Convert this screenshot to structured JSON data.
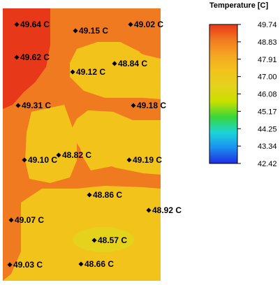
{
  "chart_data": {
    "type": "heatmap",
    "title": "",
    "legend": {
      "title": "Temperature [C]",
      "ticks": [
        "49.74",
        "48.83",
        "47.91",
        "47.00",
        "46.08",
        "45.17",
        "44.25",
        "43.34",
        "42.42"
      ],
      "min": 42.42,
      "max": 49.74,
      "colors": [
        "#e8381a",
        "#f07a1f",
        "#f5a623",
        "#f2c31b",
        "#e4d21d",
        "#c8e000",
        "#39d63b",
        "#1ad5d8",
        "#1a8ef0",
        "#1f2de0"
      ]
    },
    "points": [
      {
        "label": "49.64 C",
        "value": 49.64
      },
      {
        "label": "49.15 C",
        "value": 49.15
      },
      {
        "label": "49.02 C",
        "value": 49.02
      },
      {
        "label": "49.62 C",
        "value": 49.62
      },
      {
        "label": "48.84 C",
        "value": 48.84
      },
      {
        "label": "49.12 C",
        "value": 49.12
      },
      {
        "label": "49.31 C",
        "value": 49.31
      },
      {
        "label": "49.18 C",
        "value": 49.18
      },
      {
        "label": "49.10 C",
        "value": 49.1
      },
      {
        "label": "48.82 C",
        "value": 48.82
      },
      {
        "label": "49.19 C",
        "value": 49.19
      },
      {
        "label": "48.86 C",
        "value": 48.86
      },
      {
        "label": "48.92 C",
        "value": 48.92
      },
      {
        "label": "49.07 C",
        "value": 49.07
      },
      {
        "label": "48.57 C",
        "value": 48.57
      },
      {
        "label": "49.03 C",
        "value": 49.03
      },
      {
        "label": "48.66 C",
        "value": 48.66
      }
    ]
  }
}
